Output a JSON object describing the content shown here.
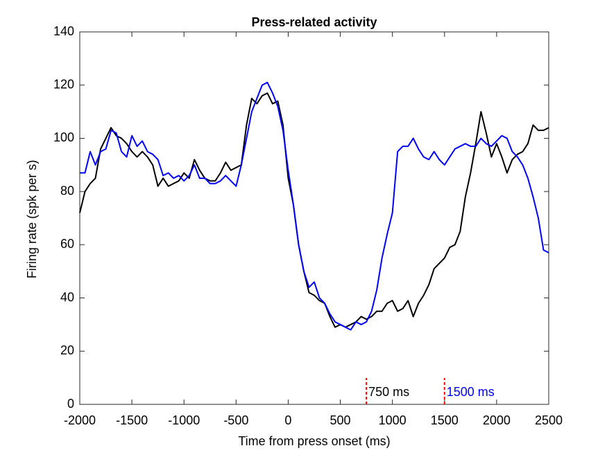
{
  "chart_data": {
    "type": "line",
    "title": "Press-related activity",
    "x_label": "Time from press onset (ms)",
    "y_label": "Firing rate (spk per s)",
    "x": [
      -2000,
      -1950,
      -1900,
      -1850,
      -1800,
      -1750,
      -1700,
      -1650,
      -1600,
      -1550,
      -1500,
      -1450,
      -1400,
      -1350,
      -1300,
      -1250,
      -1200,
      -1150,
      -1100,
      -1050,
      -1000,
      -950,
      -900,
      -850,
      -800,
      -750,
      -700,
      -650,
      -600,
      -550,
      -500,
      -450,
      -400,
      -350,
      -300,
      -250,
      -200,
      -150,
      -100,
      -50,
      0,
      50,
      100,
      150,
      200,
      250,
      300,
      350,
      400,
      450,
      500,
      550,
      600,
      650,
      700,
      750,
      800,
      850,
      900,
      950,
      1000,
      1050,
      1100,
      1150,
      1200,
      1250,
      1300,
      1350,
      1400,
      1450,
      1500,
      1550,
      1600,
      1650,
      1700,
      1750,
      1800,
      1850,
      1900,
      1950,
      2000,
      2050,
      2100,
      2150,
      2200,
      2250,
      2300,
      2350,
      2400,
      2450,
      2500
    ],
    "series": [
      {
        "color": "#000000",
        "values": [
          72,
          80,
          83,
          85,
          96,
          100,
          104,
          101,
          100,
          98,
          95,
          93,
          95,
          93,
          90,
          82,
          85,
          82,
          83,
          84,
          87,
          85,
          92,
          88,
          85,
          84,
          84,
          87,
          91,
          88,
          89,
          90,
          105,
          115,
          113,
          116,
          117,
          113,
          114,
          105,
          85,
          75,
          60,
          50,
          42,
          41,
          39,
          38,
          33,
          29,
          30,
          29,
          30,
          31,
          33,
          32,
          33,
          35,
          35,
          38,
          39,
          35,
          36,
          39,
          33,
          38,
          41,
          45,
          51,
          53,
          55,
          59,
          60,
          65,
          78,
          87,
          98,
          110,
          102,
          93,
          98,
          93,
          87,
          92,
          94,
          95,
          98,
          105,
          103,
          103,
          104
        ]
      },
      {
        "color": "#0000ff",
        "values": [
          87,
          87,
          95,
          90,
          95,
          96,
          103,
          102,
          95,
          93,
          101,
          97,
          99,
          95,
          94,
          92,
          86,
          87,
          85,
          86,
          84,
          86,
          90,
          85,
          85,
          83,
          83,
          84,
          86,
          84,
          82,
          90,
          100,
          110,
          115,
          120,
          121,
          117,
          112,
          103,
          88,
          75,
          60,
          50,
          44,
          46,
          40,
          38,
          34,
          31,
          30,
          29,
          28,
          31,
          30,
          31,
          35,
          43,
          55,
          64,
          72,
          95,
          97,
          97,
          100,
          96,
          93,
          92,
          95,
          92,
          90,
          93,
          96,
          97,
          98,
          97,
          97,
          100,
          98,
          97,
          99,
          101,
          100,
          95,
          93,
          90,
          85,
          78,
          70,
          58,
          57
        ]
      }
    ],
    "annotations": [
      {
        "x": 750,
        "text": "750 ms",
        "color": "#000000"
      },
      {
        "x": 1500,
        "text": "1500 ms",
        "color": "#0000ff"
      }
    ],
    "marker_color": "#ff0000",
    "xlim": [
      -2000,
      2500
    ],
    "xticks": [
      -2000,
      -1500,
      -1000,
      -500,
      0,
      500,
      1000,
      1500,
      2000,
      2500
    ],
    "ylim": [
      0,
      140
    ],
    "yticks": [
      0,
      20,
      40,
      60,
      80,
      100,
      120,
      140
    ]
  }
}
